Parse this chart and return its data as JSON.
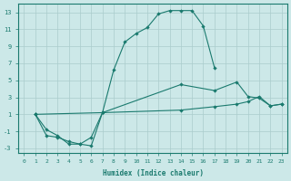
{
  "xlabel": "Humidex (Indice chaleur)",
  "bg_color": "#cce8e8",
  "grid_color": "#aacccc",
  "line_color": "#1a7a6e",
  "xlim": [
    -0.5,
    23.5
  ],
  "ylim": [
    -3.5,
    14
  ],
  "xticks": [
    0,
    1,
    2,
    3,
    4,
    5,
    6,
    7,
    8,
    9,
    10,
    11,
    12,
    13,
    14,
    15,
    16,
    17,
    18,
    19,
    20,
    21,
    22,
    23
  ],
  "yticks": [
    -3,
    -1,
    1,
    3,
    5,
    7,
    9,
    11,
    13
  ],
  "line1_x": [
    1,
    2,
    3,
    4,
    5,
    6,
    7,
    8,
    9,
    10,
    11,
    12,
    13,
    14,
    15,
    16,
    17
  ],
  "line1_y": [
    1,
    -0.8,
    -1.5,
    -2.5,
    -2.5,
    -2.7,
    1.2,
    6.2,
    9.5,
    10.5,
    11.2,
    12.8,
    13.2,
    13.2,
    13.2,
    11.4,
    6.5
  ],
  "line2_x": [
    1,
    2,
    3,
    4,
    5,
    6,
    7,
    14,
    17,
    19,
    20,
    21,
    22,
    23
  ],
  "line2_y": [
    1,
    -1.5,
    -1.7,
    -2.2,
    -2.5,
    -1.7,
    1.2,
    4.5,
    3.8,
    4.8,
    3.1,
    2.9,
    2.0,
    2.2
  ],
  "line3_x": [
    1,
    7,
    14,
    17,
    19,
    20,
    21,
    22,
    23
  ],
  "line3_y": [
    1,
    1.2,
    1.5,
    1.9,
    2.2,
    2.5,
    3.1,
    2.0,
    2.2
  ]
}
